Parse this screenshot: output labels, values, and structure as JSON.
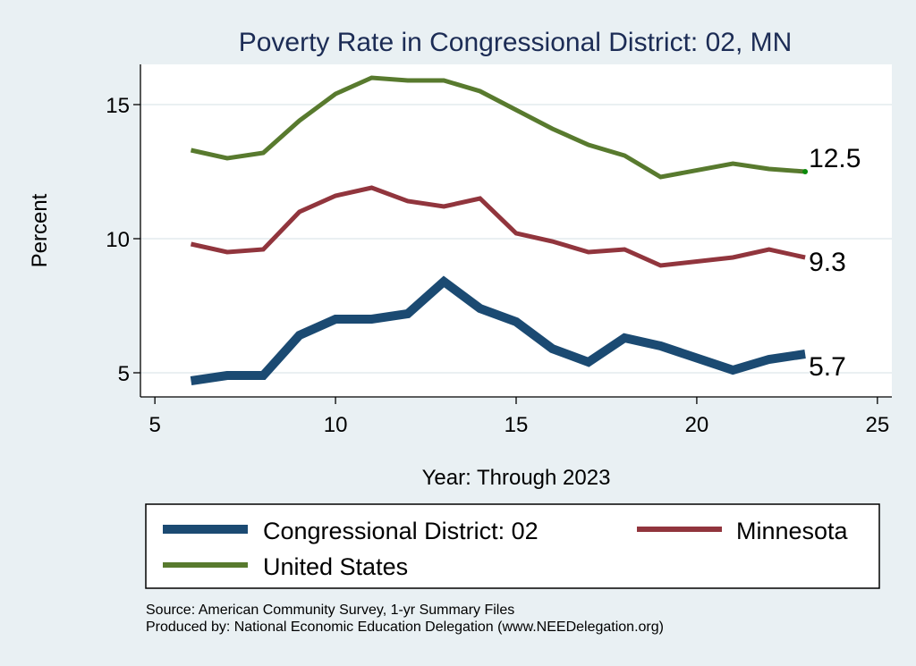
{
  "chart_data": {
    "type": "line",
    "title": "Poverty Rate in Congressional District:  02, MN",
    "xlabel": "Year: Through 2023",
    "ylabel": "Percent",
    "xlim": [
      4.6,
      25.4
    ],
    "ylim": [
      4.1,
      16.5
    ],
    "xticks": [
      5,
      10,
      15,
      20,
      25
    ],
    "yticks": [
      5,
      10,
      15
    ],
    "grid": true,
    "legend": "bottom",
    "x": [
      6,
      7,
      8,
      9,
      10,
      11,
      12,
      13,
      14,
      15,
      16,
      17,
      18,
      19,
      21,
      22,
      23
    ],
    "series": [
      {
        "name": "Congressional District:  02",
        "color": "#1b4a72",
        "values": [
          4.7,
          4.9,
          4.9,
          6.4,
          7.0,
          7.0,
          7.2,
          8.4,
          7.4,
          6.9,
          5.9,
          5.4,
          6.3,
          6.0,
          5.1,
          5.5,
          5.7
        ],
        "end_label": "5.7"
      },
      {
        "name": "Minnesota",
        "color": "#91353d",
        "values": [
          9.8,
          9.5,
          9.6,
          11.0,
          11.6,
          11.9,
          11.4,
          11.2,
          11.5,
          10.2,
          9.9,
          9.5,
          9.6,
          9.0,
          9.3,
          9.6,
          9.3
        ],
        "end_label": "9.3"
      },
      {
        "name": "United States",
        "color": "#587a2e",
        "values": [
          13.3,
          13.0,
          13.2,
          14.4,
          15.4,
          16.0,
          15.9,
          15.9,
          15.5,
          14.8,
          14.1,
          13.5,
          13.1,
          12.3,
          12.8,
          12.6,
          12.5
        ],
        "end_label": "12.5"
      }
    ],
    "notes": [
      "Source: American Community Survey, 1-yr Summary Files",
      "Produced by: National Economic Education Delegation (www.NEEDelegation.org)"
    ]
  }
}
